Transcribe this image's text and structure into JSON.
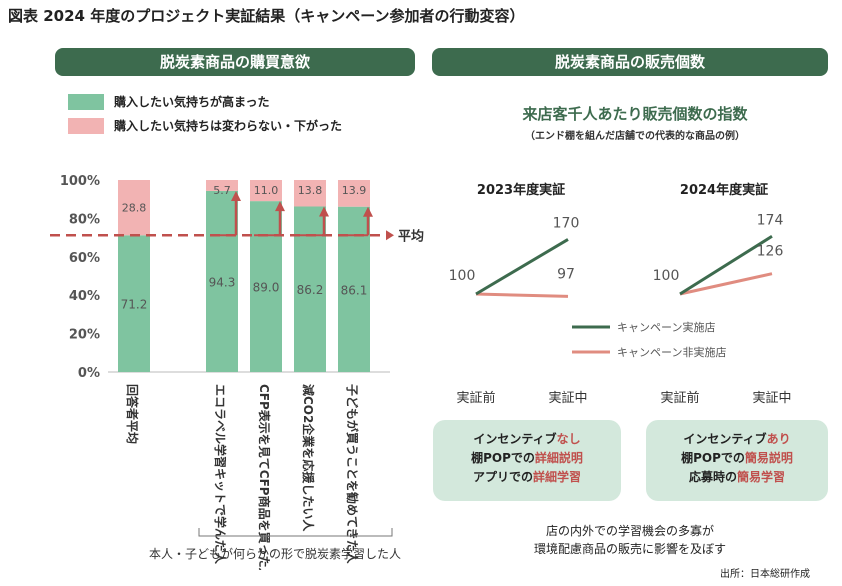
{
  "title": "図表 2024 年度のプロジェクト実証結果（キャンペーン参加者の行動変容）",
  "left_panel": {
    "banner": "脱炭素商品の購買意欲",
    "legend": [
      {
        "label": "購入したい気持ちが高まった",
        "color": "#7fc4a0"
      },
      {
        "label": "購入したい気持ちは変わらない・下がった",
        "color": "#f2b3b3"
      }
    ],
    "average_label": "平均",
    "bracket_label": "本人・子どもが何らかの形で脱炭素学習した人"
  },
  "right_panel": {
    "banner": "脱炭素商品の販売個数",
    "subtitle": "来店客千人あたり販売個数の指数",
    "subnote": "（エンド棚を組んだ店舗での代表的な商品の例）",
    "legend": [
      {
        "label": "キャンペーン実施店",
        "color": "#3d6b4e"
      },
      {
        "label": "キャンペーン非実施店",
        "color": "#e08c80"
      }
    ],
    "callouts": [
      {
        "line1_a": "インセンティブ",
        "line1_b": "なし",
        "line2_a": "棚POPでの",
        "line2_b": "詳細説明",
        "line3_a": "アプリでの",
        "line3_b": "詳細学習"
      },
      {
        "line1_a": "インセンティブ",
        "line1_b": "あり",
        "line2_a": "棚POPでの",
        "line2_b": "簡易説明",
        "line3_a": "応募時の",
        "line3_b": "簡易学習"
      }
    ],
    "conclusion_line1": "店の内外での学習機会の多寡が",
    "conclusion_line2": "環境配慮商品の販売に影響を及ぼす"
  },
  "source": "出所：日本総研作成",
  "chart_data": [
    {
      "type": "bar",
      "stacked": true,
      "categories": [
        "回答者平均",
        "エコラベル学習キットで学んだ人",
        "CFP表示を見てCFP商品を買った人",
        "減CO2企業を応援したい人",
        "子どもが買うことを勧めてきた人"
      ],
      "series": [
        {
          "name": "購入したい気持ちが高まった",
          "values": [
            71.2,
            94.3,
            89.0,
            86.2,
            86.1
          ],
          "labels": [
            "71.2",
            "94.3",
            "89.0",
            "86.2",
            "86.1"
          ]
        },
        {
          "name": "購入したい気持ちは変わらない・下がった",
          "values": [
            28.8,
            5.7,
            11.0,
            13.8,
            13.9
          ],
          "labels": [
            "28.8",
            "5.7",
            "11.0",
            "13.8",
            "13.9"
          ]
        }
      ],
      "ytick_labels": [
        "0%",
        "20%",
        "40%",
        "60%",
        "80%",
        "100%"
      ],
      "ylim": [
        0,
        100
      ],
      "average_line": 71.2
    },
    {
      "type": "line",
      "title": "2023年度実証",
      "x": [
        "実証前",
        "実証中"
      ],
      "series": [
        {
          "name": "キャンペーン実施店",
          "values": [
            100,
            170
          ]
        },
        {
          "name": "キャンペーン非実施店",
          "values": [
            100,
            97
          ]
        }
      ],
      "point_labels": {
        "start": "100",
        "campaign_end": "170",
        "non_campaign_end": "97"
      }
    },
    {
      "type": "line",
      "title": "2024年度実証",
      "x": [
        "実証前",
        "実証中"
      ],
      "series": [
        {
          "name": "キャンペーン実施店",
          "values": [
            100,
            174
          ]
        },
        {
          "name": "キャンペーン非実施店",
          "values": [
            100,
            126
          ]
        }
      ],
      "point_labels": {
        "start": "100",
        "campaign_end": "174",
        "non_campaign_end": "126"
      }
    }
  ]
}
